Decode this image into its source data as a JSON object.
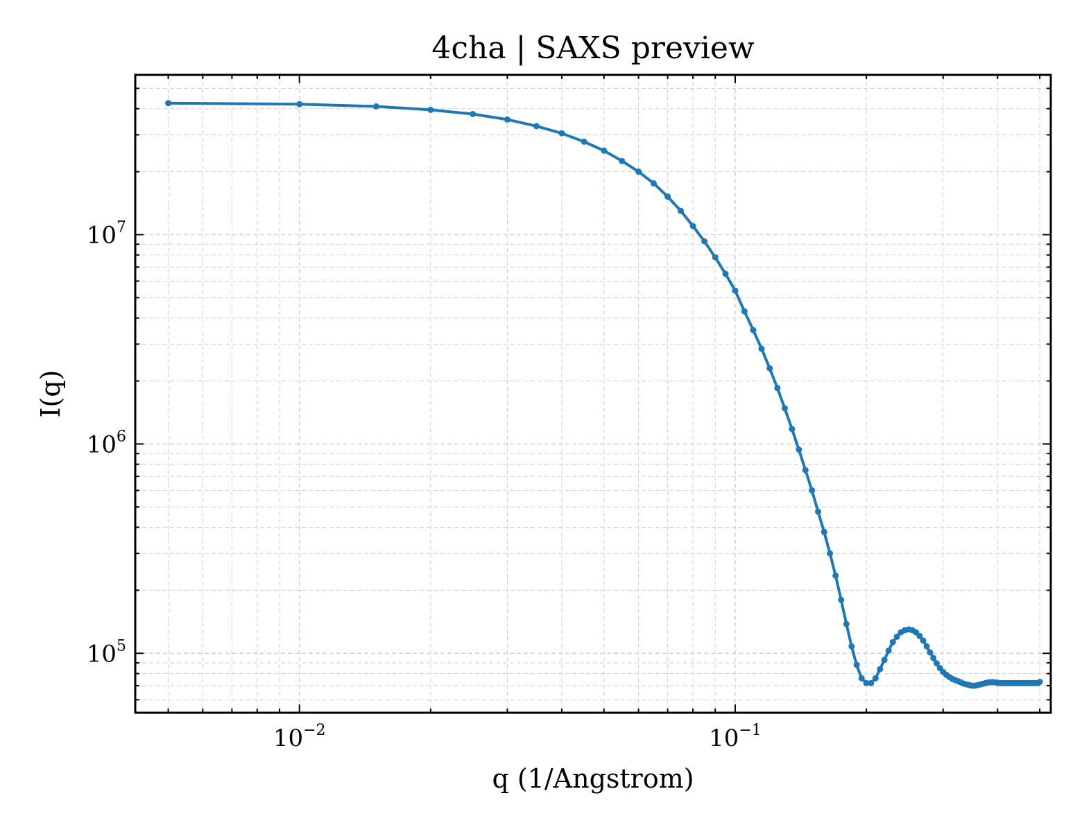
{
  "chart_data": {
    "type": "line",
    "title": "4cha | SAXS preview",
    "xlabel": "q (1/Angstrom)",
    "ylabel": "I(q)",
    "xscale": "log",
    "yscale": "log",
    "xlim": [
      0.0042,
      0.53
    ],
    "ylim": [
      52000,
      58000000
    ],
    "x_ticks": [
      {
        "base": "10",
        "exp": "−2",
        "value": 0.01
      },
      {
        "base": "10",
        "exp": "−1",
        "value": 0.1
      }
    ],
    "y_ticks": [
      {
        "base": "10",
        "exp": "5",
        "value": 100000
      },
      {
        "base": "10",
        "exp": "6",
        "value": 1000000
      },
      {
        "base": "10",
        "exp": "7",
        "value": 10000000
      }
    ],
    "grid": true,
    "line_color": "#1f77b4",
    "series": [
      {
        "x": [
          0.005,
          0.01,
          0.015,
          0.02,
          0.025,
          0.03,
          0.035,
          0.04,
          0.045,
          0.05,
          0.055,
          0.06,
          0.065,
          0.07,
          0.075,
          0.08,
          0.085,
          0.09,
          0.095,
          0.1,
          0.105,
          0.11,
          0.115,
          0.12,
          0.125,
          0.13,
          0.135,
          0.14,
          0.145,
          0.15,
          0.155,
          0.16,
          0.165,
          0.17,
          0.175,
          0.18,
          0.185,
          0.19,
          0.195,
          0.2,
          0.205,
          0.21,
          0.215,
          0.22,
          0.225,
          0.23,
          0.235,
          0.24,
          0.245,
          0.25,
          0.255,
          0.26,
          0.265,
          0.27,
          0.275,
          0.28,
          0.285,
          0.29,
          0.295,
          0.3,
          0.305,
          0.31,
          0.315,
          0.32,
          0.325,
          0.33,
          0.335,
          0.34,
          0.345,
          0.35,
          0.355,
          0.36,
          0.365,
          0.37,
          0.375,
          0.38,
          0.385,
          0.39,
          0.395,
          0.4,
          0.405,
          0.41,
          0.415,
          0.42,
          0.425,
          0.43,
          0.435,
          0.44,
          0.445,
          0.45,
          0.455,
          0.46,
          0.465,
          0.47,
          0.475,
          0.48,
          0.485,
          0.49,
          0.495,
          0.5
        ],
        "y": [
          42500000,
          42000000,
          41000000,
          39500000,
          37700000,
          35500000,
          33000000,
          30500000,
          27800000,
          25200000,
          22500000,
          20000000,
          17600000,
          15200000,
          13000000,
          11000000,
          9300000,
          7800000,
          6500000,
          5400000,
          4300000,
          3500000,
          2850000,
          2300000,
          1850000,
          1480000,
          1180000,
          940000,
          750000,
          600000,
          475000,
          380000,
          300000,
          235000,
          180000,
          138000,
          108000,
          88000,
          76000,
          72000,
          72000,
          76000,
          84000,
          93000,
          103000,
          113000,
          120000,
          126000,
          129000,
          130000,
          129000,
          126000,
          121000,
          115000,
          108000,
          101000,
          95000,
          89500,
          85000,
          81500,
          79000,
          77000,
          75500,
          74500,
          73500,
          72500,
          71500,
          71000,
          70500,
          70000,
          70000,
          70500,
          71000,
          71500,
          72000,
          72500,
          72800,
          72800,
          72600,
          72300,
          72000,
          72000,
          72000,
          72000,
          72000,
          72000,
          72000,
          72000,
          72000,
          72000,
          72000,
          72000,
          72000,
          72000,
          72000,
          72000,
          72000,
          72000,
          72000,
          73000
        ]
      }
    ]
  }
}
